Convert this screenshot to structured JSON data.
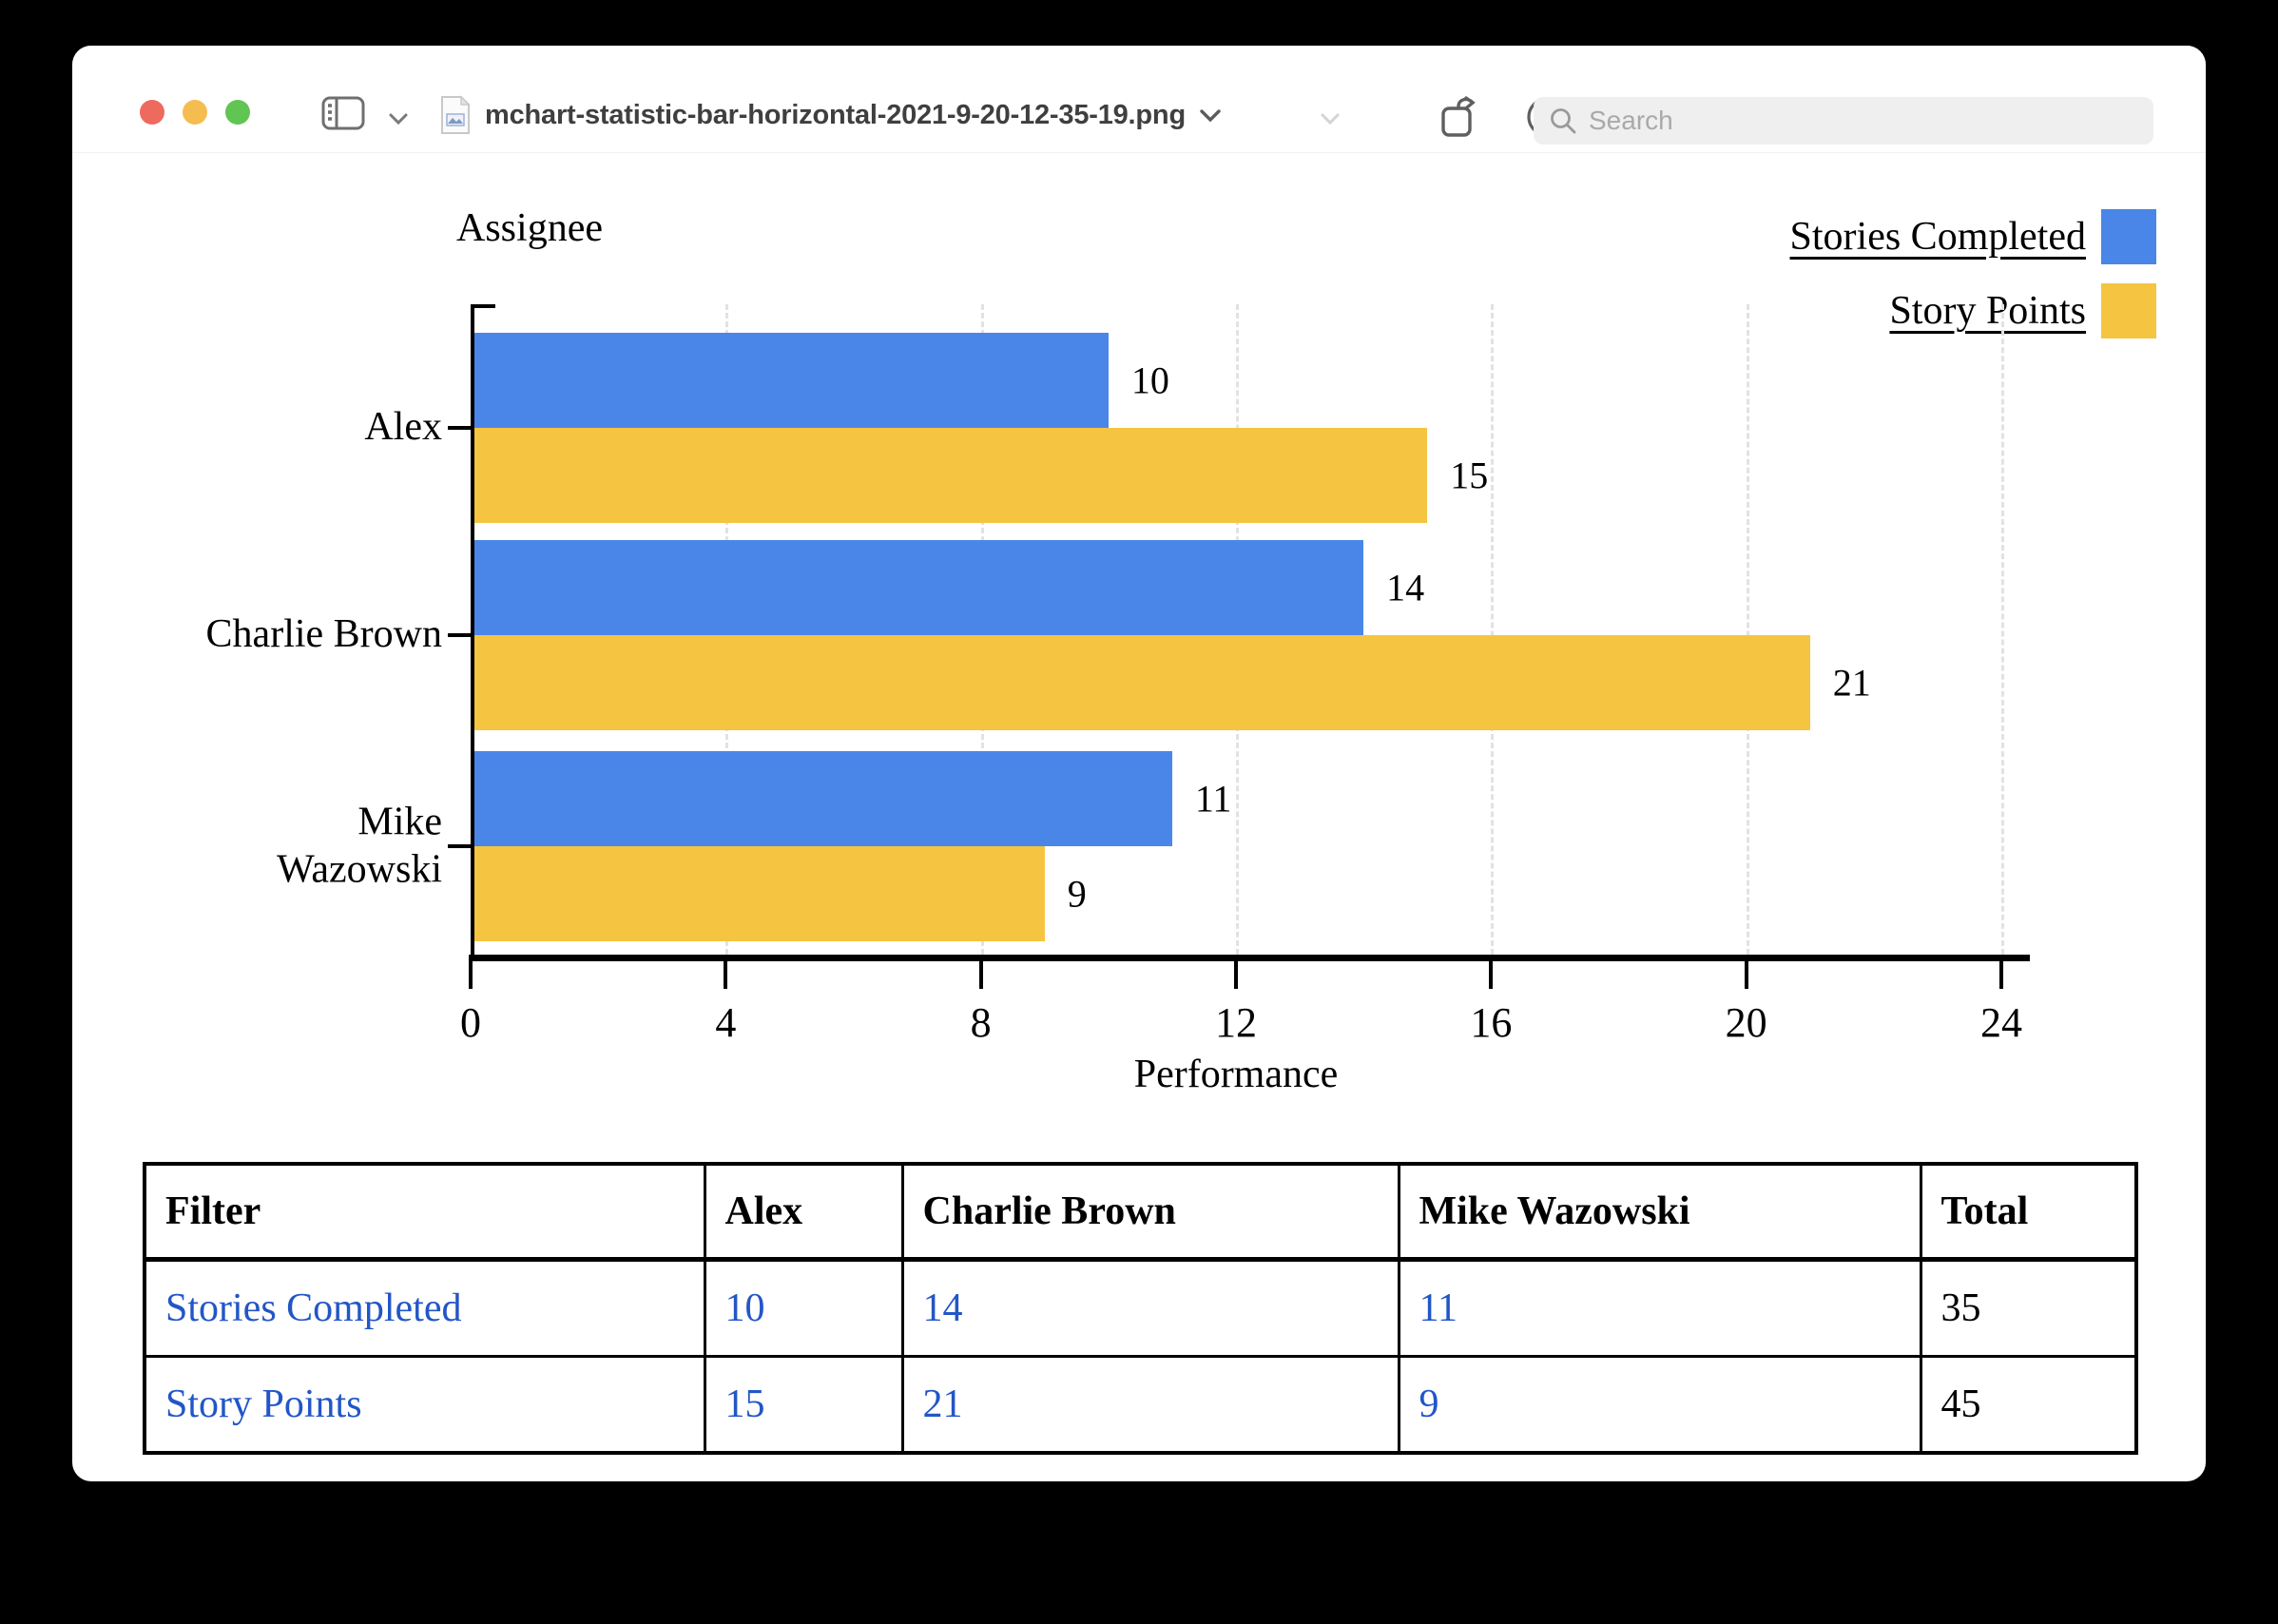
{
  "window": {
    "app": "Preview",
    "title": "mchart-statistic-bar-horizontal-2021-9-20-12-35-19.png",
    "search_placeholder": "Search"
  },
  "icons": {
    "close-icon": "red traffic light circle",
    "minimize-icon": "yellow traffic light circle",
    "fullscreen-icon": "green traffic light circle",
    "sidebar-icon": "panel with sidebar outline",
    "chevron-down-icon": "⌄",
    "file-icon": "document thumbnail",
    "rotate-left-icon": "square with counterclockwise arrow",
    "markup-icon": "pen nib in circle",
    "search-icon": "magnifier"
  },
  "colors": {
    "traffic_close": "#ee6a5f",
    "traffic_minimize": "#f5bd4f",
    "traffic_fullscreen": "#61c554",
    "table_link": "#2256c7",
    "series_blue": "#4a86e8",
    "series_yellow": "#f5c542"
  },
  "chart_data": {
    "type": "bar",
    "orientation": "horizontal",
    "title": "Assignee",
    "xlabel": "Performance",
    "categories": [
      "Alex",
      "Charlie Brown",
      "Mike Wazowski"
    ],
    "ytick_labels": [
      "Alex",
      "Charlie Brown",
      "Mike\nWazowski"
    ],
    "series": [
      {
        "name": "Stories Completed",
        "color": "#4a86e8",
        "values": [
          10,
          14,
          11
        ]
      },
      {
        "name": "Story Points",
        "color": "#f5c542",
        "values": [
          15,
          21,
          9
        ]
      }
    ],
    "xlim": [
      0,
      24
    ],
    "xticks": [
      0,
      4,
      8,
      12,
      16,
      20,
      24
    ],
    "grid": "vertical-dashed",
    "legend_position": "top-right",
    "bar_value_labels": true
  },
  "table": {
    "headers": [
      "Filter",
      "Alex",
      "Charlie Brown",
      "Mike Wazowski",
      "Total"
    ],
    "rows": [
      {
        "filter": "Stories Completed",
        "values": [
          "10",
          "14",
          "11"
        ],
        "total": "35"
      },
      {
        "filter": "Story Points",
        "values": [
          "15",
          "21",
          "9"
        ],
        "total": "45"
      }
    ]
  }
}
